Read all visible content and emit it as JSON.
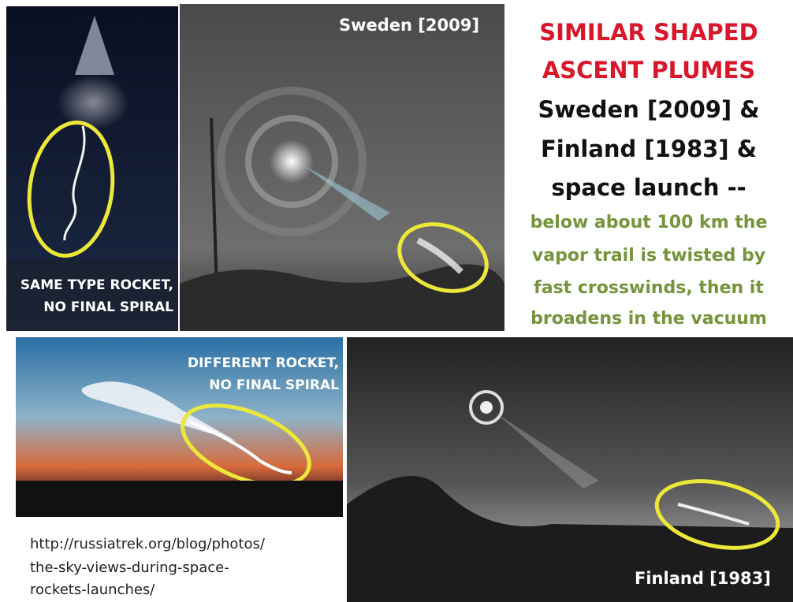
{
  "panels": {
    "left_photo": {
      "caption": [
        "SAME TYPE ROCKET,",
        "NO FINAL SPIRAL"
      ]
    },
    "sweden_photo": {
      "label": "Sweden [2009]"
    },
    "different_photo": {
      "caption": [
        "DIFFERENT ROCKET,",
        "NO FINAL SPIRAL"
      ]
    },
    "finland_photo": {
      "label": "Finland [1983]"
    }
  },
  "headline": {
    "red": [
      "SIMILAR SHAPED",
      "ASCENT PLUMES"
    ],
    "black": [
      "Sweden [2009] &",
      "Finland [1983] &",
      "space launch --"
    ],
    "green": [
      "below about 100 km the",
      "vapor trail is twisted by",
      "fast crosswinds, then it",
      "broadens in the vacuum"
    ]
  },
  "source": [
    "http://russiatrek.org/blog/photos/",
    "the-sky-views-during-space-",
    "rockets-launches/"
  ]
}
